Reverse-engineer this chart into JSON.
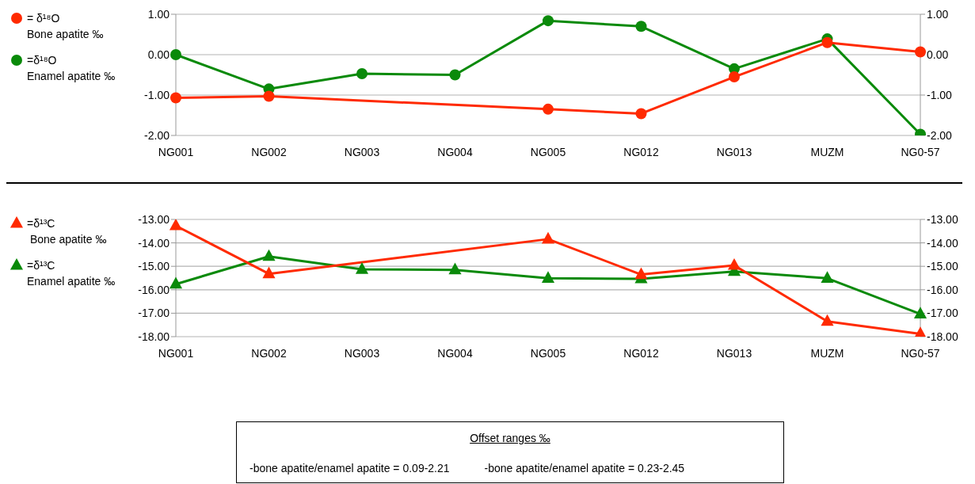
{
  "chart_data": [
    {
      "type": "line",
      "categories": [
        "NG001",
        "NG002",
        "NG003",
        "NG004",
        "NG005",
        "NG012",
        "NG013",
        "MUZM",
        "NG0-57"
      ],
      "series": [
        {
          "name": "= δ¹⁸O\nBone apatite ‰",
          "color": "#ff2a00",
          "values": [
            -1.07,
            -1.03,
            null,
            null,
            -1.35,
            -1.46,
            -0.55,
            0.3,
            0.07
          ]
        },
        {
          "name": "=δ¹⁸O\nEnamel apatite ‰",
          "color": "#0a8a0a",
          "values": [
            0.0,
            -0.85,
            -0.47,
            -0.5,
            0.84,
            0.7,
            -0.35,
            0.39,
            -1.97
          ]
        }
      ],
      "ylim": [
        -2,
        1
      ],
      "yticks": [
        {
          "value": -2,
          "label": "-2.00"
        },
        {
          "value": -1,
          "label": "-1.00"
        },
        {
          "value": 0,
          "label": "0.00"
        },
        {
          "value": 1,
          "label": "1.00"
        }
      ],
      "y2lim": [
        -2,
        1
      ],
      "y2ticks": [
        {
          "value": -2,
          "label": "-2.00"
        },
        {
          "value": -1,
          "label": "-1.00"
        },
        {
          "value": 0,
          "label": "0.00"
        },
        {
          "value": 1,
          "label": "1.00"
        }
      ],
      "grid": "y",
      "legend": "left",
      "marker": "circle",
      "line_style": "solid"
    },
    {
      "type": "line",
      "categories": [
        "NG001",
        "NG002",
        "NG003",
        "NG004",
        "NG005",
        "NG012",
        "NG013",
        "MUZM",
        "NG0-57"
      ],
      "series": [
        {
          "name": "=δ¹³C\n Bone apatite ‰",
          "color": "#ff2a00",
          "values": [
            -13.27,
            -15.32,
            null,
            null,
            -13.84,
            -15.35,
            -14.96,
            -17.35,
            -17.88
          ]
        },
        {
          "name": "=δ¹³C\nEnamel apatite ‰",
          "color": "#0a8a0a",
          "values": [
            -15.76,
            -14.58,
            -15.13,
            -15.15,
            -15.51,
            -15.53,
            -15.22,
            -15.51,
            -17.03
          ]
        }
      ],
      "ylim": [
        -18,
        -13
      ],
      "yticks": [
        {
          "value": -18,
          "label": "-18.00"
        },
        {
          "value": -17,
          "label": "-17.00"
        },
        {
          "value": -16,
          "label": "-16.00"
        },
        {
          "value": -15,
          "label": "-15.00"
        },
        {
          "value": -14,
          "label": "-14.00"
        },
        {
          "value": -13,
          "label": "-13.00"
        }
      ],
      "y2lim": [
        -18,
        -13
      ],
      "y2ticks": [
        {
          "value": -18,
          "label": "-18.00"
        },
        {
          "value": -17,
          "label": "-17.00"
        },
        {
          "value": -16,
          "label": "-16.00"
        },
        {
          "value": -15,
          "label": "-15.00"
        },
        {
          "value": -14,
          "label": "-14.00"
        },
        {
          "value": -13,
          "label": "-13.00"
        }
      ],
      "grid": "y",
      "legend": "left",
      "marker": "triangle",
      "line_style": "solid"
    },
    {
      "type": "other",
      "title": "Offset ranges ‰",
      "annotations": [
        "-bone apatite/enamel apatite = 0.09-2.21",
        "-bone apatite/enamel apatite = 0.23-2.45"
      ]
    }
  ]
}
